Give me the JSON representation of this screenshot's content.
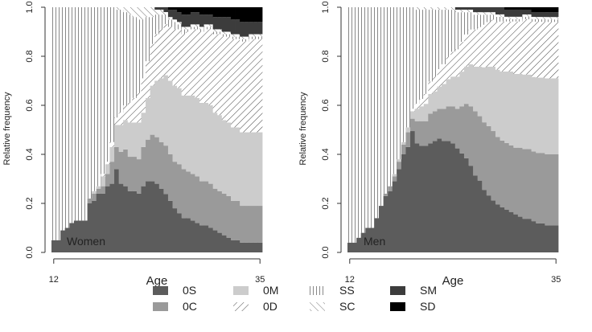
{
  "chart_data": [
    {
      "type": "area",
      "subtype": "stacked-state-distribution",
      "panel_label": "Women",
      "xlabel": "Age",
      "ylabel": "Relative frequency",
      "x_tick_labels": [
        "12",
        "35"
      ],
      "y_tick_labels": [
        "0.0",
        "0.2",
        "0.4",
        "0.6",
        "0.8",
        "1.0"
      ],
      "xlim": [
        12,
        35
      ],
      "ylim": [
        0,
        1
      ],
      "ages": [
        12,
        12.5,
        13,
        13.5,
        14,
        14.5,
        15,
        15.5,
        16,
        16.5,
        17,
        17.5,
        18,
        18.5,
        19,
        19.5,
        20,
        20.5,
        21,
        21.5,
        22,
        22.5,
        23,
        23.5,
        24,
        24.5,
        25,
        25.5,
        26,
        26.5,
        27,
        27.5,
        28,
        28.5,
        29,
        29.5,
        30,
        30.5,
        31,
        31.5,
        32,
        32.5,
        33,
        33.5,
        34,
        34.5,
        35
      ],
      "stack_order": [
        "0S",
        "0C",
        "0M",
        "0D",
        "SS",
        "SC",
        "SM",
        "SD"
      ],
      "series": [
        {
          "name": "0S",
          "values": [
            0.05,
            0.05,
            0.09,
            0.1,
            0.12,
            0.13,
            0.13,
            0.13,
            0.2,
            0.21,
            0.24,
            0.24,
            0.27,
            0.28,
            0.34,
            0.28,
            0.27,
            0.25,
            0.25,
            0.24,
            0.27,
            0.29,
            0.29,
            0.28,
            0.26,
            0.24,
            0.21,
            0.18,
            0.16,
            0.14,
            0.14,
            0.13,
            0.12,
            0.11,
            0.11,
            0.1,
            0.09,
            0.08,
            0.07,
            0.06,
            0.05,
            0.05,
            0.04,
            0.04,
            0.04,
            0.04,
            0.04
          ]
        },
        {
          "name": "0C",
          "values": [
            0,
            0,
            0,
            0,
            0,
            0,
            0,
            0,
            0.02,
            0.03,
            0.02,
            0.03,
            0.05,
            0.09,
            0.09,
            0.13,
            0.15,
            0.14,
            0.14,
            0.14,
            0.16,
            0.17,
            0.19,
            0.19,
            0.19,
            0.2,
            0.19,
            0.19,
            0.2,
            0.2,
            0.19,
            0.19,
            0.19,
            0.18,
            0.18,
            0.18,
            0.17,
            0.17,
            0.17,
            0.17,
            0.16,
            0.16,
            0.15,
            0.15,
            0.15,
            0.15,
            0.15
          ]
        },
        {
          "name": "0M",
          "values": [
            0,
            0,
            0,
            0,
            0,
            0,
            0,
            0,
            0,
            0.01,
            0.01,
            0.04,
            0.04,
            0.06,
            0.09,
            0.11,
            0.12,
            0.14,
            0.14,
            0.15,
            0.14,
            0.17,
            0.2,
            0.23,
            0.26,
            0.29,
            0.3,
            0.31,
            0.31,
            0.3,
            0.31,
            0.32,
            0.32,
            0.32,
            0.32,
            0.32,
            0.31,
            0.31,
            0.3,
            0.3,
            0.3,
            0.3,
            0.3,
            0.3,
            0.3,
            0.3,
            0.3
          ]
        },
        {
          "name": "0D",
          "values": [
            0,
            0,
            0,
            0,
            0,
            0,
            0,
            0,
            0,
            0,
            0,
            0.01,
            0.01,
            0.02,
            0.03,
            0.05,
            0.06,
            0.08,
            0.1,
            0.12,
            0.14,
            0.15,
            0.17,
            0.19,
            0.2,
            0.21,
            0.22,
            0.23,
            0.24,
            0.25,
            0.26,
            0.27,
            0.28,
            0.29,
            0.3,
            0.31,
            0.32,
            0.33,
            0.34,
            0.35,
            0.36,
            0.36,
            0.37,
            0.37,
            0.38,
            0.38,
            0.38
          ]
        },
        {
          "name": "SS",
          "values": [
            0.95,
            0.95,
            0.91,
            0.9,
            0.88,
            0.87,
            0.87,
            0.87,
            0.78,
            0.75,
            0.73,
            0.68,
            0.63,
            0.55,
            0.44,
            0.42,
            0.38,
            0.36,
            0.33,
            0.3,
            0.24,
            0.18,
            0.11,
            0.08,
            0.06,
            0.04,
            0.03,
            0.03,
            0.02,
            0.02,
            0.01,
            0.01,
            0.01,
            0.01,
            0.01,
            0.01,
            0.01,
            0.01,
            0.01,
            0.01,
            0.01,
            0.01,
            0.01,
            0.01,
            0.01,
            0.01,
            0.01
          ]
        },
        {
          "name": "SC",
          "values": [
            0,
            0,
            0,
            0,
            0,
            0,
            0,
            0,
            0,
            0,
            0,
            0,
            0,
            0,
            0.01,
            0.01,
            0.02,
            0.03,
            0.04,
            0.05,
            0.05,
            0.04,
            0.04,
            0.02,
            0.02,
            0.01,
            0.01,
            0.01,
            0.01,
            0.01,
            0.01,
            0.01,
            0.01,
            0.01,
            0.01,
            0.01,
            0.01,
            0.01,
            0.01,
            0.01,
            0.01,
            0.01,
            0.01,
            0.01,
            0.01,
            0.01,
            0.01
          ]
        },
        {
          "name": "SM",
          "values": [
            0,
            0,
            0,
            0,
            0,
            0,
            0,
            0,
            0,
            0,
            0,
            0,
            0,
            0,
            0,
            0,
            0,
            0,
            0,
            0,
            0,
            0,
            0,
            0.01,
            0.01,
            0.02,
            0.03,
            0.04,
            0.04,
            0.05,
            0.05,
            0.05,
            0.05,
            0.05,
            0.04,
            0.04,
            0.05,
            0.05,
            0.06,
            0.06,
            0.06,
            0.06,
            0.06,
            0.06,
            0.05,
            0.05,
            0.05
          ]
        },
        {
          "name": "SD",
          "values": [
            0,
            0,
            0,
            0,
            0,
            0,
            0,
            0,
            0,
            0,
            0,
            0,
            0,
            0,
            0,
            0,
            0,
            0,
            0,
            0,
            0,
            0,
            0,
            0,
            0,
            0,
            0.01,
            0.01,
            0.02,
            0.03,
            0.03,
            0.02,
            0.02,
            0.03,
            0.03,
            0.03,
            0.04,
            0.04,
            0.04,
            0.04,
            0.05,
            0.05,
            0.06,
            0.06,
            0.06,
            0.06,
            0.06
          ]
        }
      ]
    },
    {
      "type": "area",
      "subtype": "stacked-state-distribution",
      "panel_label": "Men",
      "xlabel": "Age",
      "ylabel": "Relative frequency",
      "x_tick_labels": [
        "12",
        "35"
      ],
      "y_tick_labels": [
        "0.0",
        "0.2",
        "0.4",
        "0.6",
        "0.8",
        "1.0"
      ],
      "xlim": [
        12,
        35
      ],
      "ylim": [
        0,
        1
      ],
      "ages": [
        12,
        12.5,
        13,
        13.5,
        14,
        14.5,
        15,
        15.5,
        16,
        16.5,
        17,
        17.5,
        18,
        18.5,
        19,
        19.5,
        20,
        20.5,
        21,
        21.5,
        22,
        22.5,
        23,
        23.5,
        24,
        24.5,
        25,
        25.5,
        26,
        26.5,
        27,
        27.5,
        28,
        28.5,
        29,
        29.5,
        30,
        30.5,
        31,
        31.5,
        32,
        32.5,
        33,
        33.5,
        34,
        34.5,
        35
      ],
      "stack_order": [
        "0S",
        "0C",
        "0M",
        "0D",
        "SS",
        "SC",
        "SM",
        "SD"
      ],
      "series": [
        {
          "name": "0S",
          "values": [
            0.04,
            0.04,
            0.06,
            0.08,
            0.1,
            0.1,
            0.14,
            0.19,
            0.23,
            0.25,
            0.29,
            0.34,
            0.4,
            0.43,
            0.49,
            0.44,
            0.43,
            0.43,
            0.44,
            0.45,
            0.46,
            0.45,
            0.45,
            0.44,
            0.42,
            0.4,
            0.38,
            0.35,
            0.31,
            0.29,
            0.25,
            0.23,
            0.21,
            0.2,
            0.19,
            0.18,
            0.17,
            0.16,
            0.15,
            0.14,
            0.14,
            0.13,
            0.12,
            0.12,
            0.11,
            0.11,
            0.11
          ]
        },
        {
          "name": "0C",
          "values": [
            0,
            0,
            0,
            0,
            0,
            0,
            0,
            0,
            0.01,
            0.02,
            0.02,
            0.03,
            0.04,
            0.06,
            0.05,
            0.09,
            0.1,
            0.1,
            0.12,
            0.12,
            0.12,
            0.13,
            0.14,
            0.15,
            0.16,
            0.19,
            0.22,
            0.24,
            0.26,
            0.26,
            0.27,
            0.28,
            0.28,
            0.28,
            0.28,
            0.28,
            0.28,
            0.28,
            0.29,
            0.29,
            0.29,
            0.29,
            0.29,
            0.29,
            0.29,
            0.29,
            0.29
          ]
        },
        {
          "name": "0M",
          "values": [
            0,
            0,
            0,
            0,
            0,
            0,
            0,
            0,
            0,
            0,
            0.01,
            0.01,
            0.01,
            0.02,
            0.03,
            0.05,
            0.06,
            0.07,
            0.08,
            0.08,
            0.09,
            0.1,
            0.11,
            0.12,
            0.13,
            0.14,
            0.15,
            0.17,
            0.18,
            0.2,
            0.22,
            0.24,
            0.26,
            0.28,
            0.29,
            0.3,
            0.31,
            0.31,
            0.31,
            0.31,
            0.31,
            0.31,
            0.31,
            0.31,
            0.31,
            0.31,
            0.31
          ]
        },
        {
          "name": "0D",
          "values": [
            0,
            0,
            0,
            0,
            0,
            0,
            0,
            0,
            0,
            0,
            0,
            0,
            0,
            0,
            0.01,
            0.02,
            0.03,
            0.04,
            0.05,
            0.06,
            0.07,
            0.08,
            0.09,
            0.1,
            0.11,
            0.12,
            0.13,
            0.14,
            0.15,
            0.16,
            0.17,
            0.18,
            0.19,
            0.2,
            0.21,
            0.21,
            0.21,
            0.22,
            0.22,
            0.23,
            0.23,
            0.23,
            0.23,
            0.23,
            0.23,
            0.23,
            0.23
          ]
        },
        {
          "name": "SS",
          "values": [
            0.96,
            0.96,
            0.94,
            0.92,
            0.9,
            0.9,
            0.86,
            0.81,
            0.76,
            0.73,
            0.68,
            0.62,
            0.55,
            0.49,
            0.41,
            0.38,
            0.36,
            0.34,
            0.29,
            0.27,
            0.24,
            0.22,
            0.19,
            0.17,
            0.15,
            0.12,
            0.09,
            0.07,
            0.06,
            0.05,
            0.04,
            0.03,
            0.02,
            0.02,
            0.02,
            0.01,
            0.01,
            0.01,
            0.01,
            0.01,
            0.01,
            0.01,
            0.01,
            0.01,
            0.01,
            0.01,
            0.01
          ]
        },
        {
          "name": "SC",
          "values": [
            0,
            0,
            0,
            0,
            0,
            0,
            0,
            0,
            0,
            0,
            0,
            0,
            0,
            0,
            0,
            0.01,
            0.01,
            0.01,
            0.01,
            0.01,
            0.01,
            0.01,
            0.01,
            0.01,
            0.01,
            0.01,
            0.01,
            0.01,
            0.01,
            0.01,
            0.01,
            0.01,
            0.01,
            0.01,
            0.01,
            0.01,
            0.01,
            0.01,
            0.01,
            0.01,
            0.01,
            0.01,
            0.01,
            0.01,
            0.01,
            0.01,
            0.01
          ]
        },
        {
          "name": "SM",
          "values": [
            0,
            0,
            0,
            0,
            0,
            0,
            0,
            0,
            0,
            0,
            0,
            0,
            0,
            0,
            0,
            0,
            0,
            0,
            0,
            0,
            0,
            0,
            0,
            0,
            0.01,
            0.01,
            0.01,
            0.01,
            0.02,
            0.02,
            0.02,
            0.02,
            0.02,
            0.03,
            0.03,
            0.03,
            0.03,
            0.03,
            0.03,
            0.02,
            0.02,
            0.02,
            0.02,
            0.02,
            0.02,
            0.02,
            0.02
          ]
        },
        {
          "name": "SD",
          "values": [
            0,
            0,
            0,
            0,
            0,
            0,
            0,
            0,
            0,
            0,
            0,
            0,
            0,
            0,
            0,
            0,
            0,
            0,
            0,
            0,
            0,
            0,
            0,
            0,
            0,
            0,
            0,
            0,
            0,
            0,
            0,
            0,
            0,
            0,
            0,
            0.01,
            0.01,
            0.01,
            0.01,
            0.01,
            0.01,
            0.02,
            0.02,
            0.02,
            0.02,
            0.02,
            0.02
          ]
        }
      ]
    }
  ],
  "legend": {
    "items": [
      {
        "label": "0S",
        "style": "fill",
        "color": "#5c5c5c"
      },
      {
        "label": "0C",
        "style": "fill",
        "color": "#9a9a9a"
      },
      {
        "label": "0M",
        "style": "fill",
        "color": "#cccccc"
      },
      {
        "label": "0D",
        "style": "hatch-right"
      },
      {
        "label": "SS",
        "style": "vlines"
      },
      {
        "label": "SC",
        "style": "hatch-left"
      },
      {
        "label": "SM",
        "style": "fill",
        "color": "#3c3c3c"
      },
      {
        "label": "SD",
        "style": "fill",
        "color": "#000000"
      }
    ]
  },
  "colors": {
    "0S": "#5c5c5c",
    "0C": "#9a9a9a",
    "0M": "#cccccc",
    "SM": "#3c3c3c",
    "SD": "#000000",
    "axis": "#333333"
  }
}
